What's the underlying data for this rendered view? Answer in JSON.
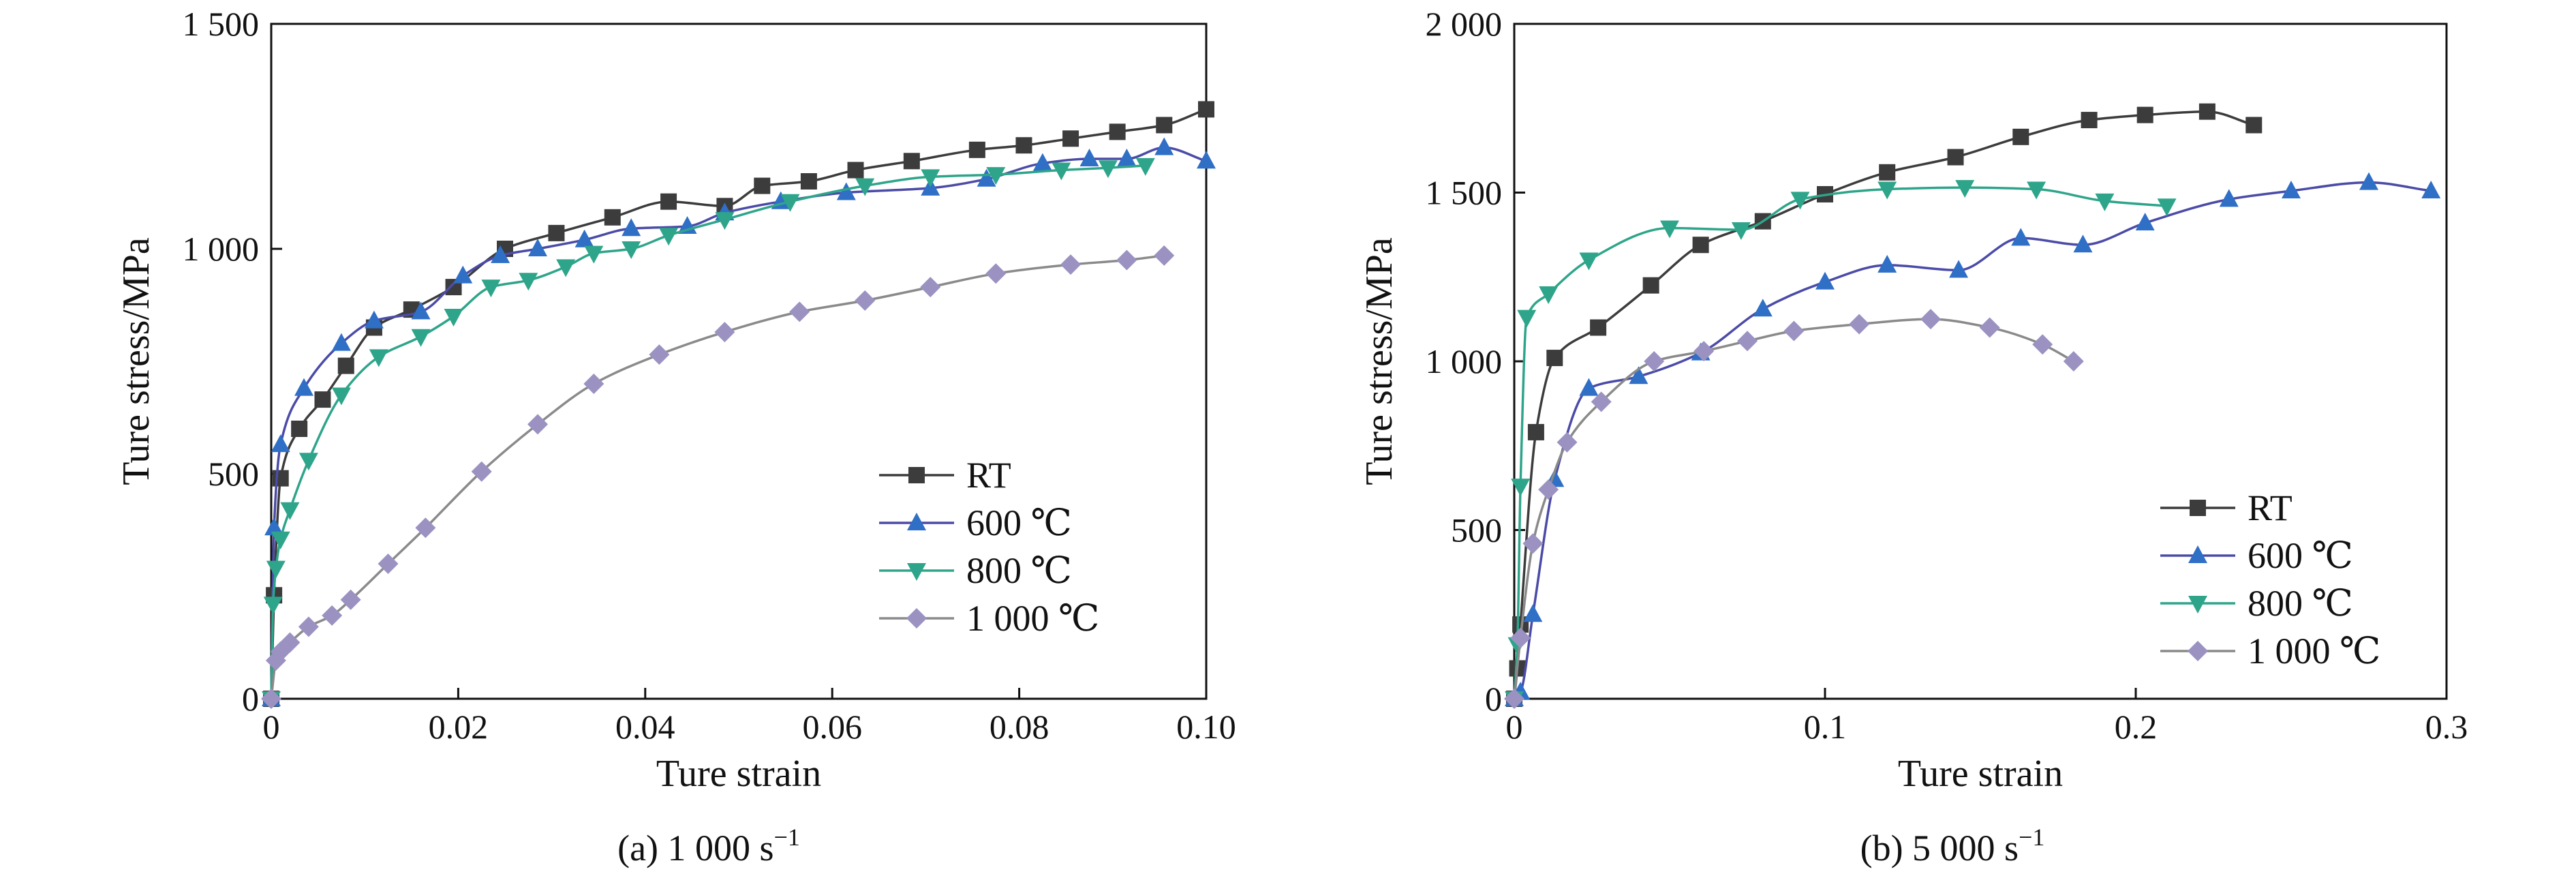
{
  "chart_data": [
    {
      "type": "line",
      "caption": "(a) 1 000 s",
      "caption_sup": "−1",
      "xlabel": "Ture strain",
      "ylabel": "Ture stress/MPa",
      "xlim": [
        0,
        0.1
      ],
      "ylim": [
        0,
        1500
      ],
      "xticks": [
        0,
        0.02,
        0.04,
        0.06,
        0.08,
        0.1
      ],
      "xtick_labels": [
        "0",
        "0.02",
        "0.04",
        "0.06",
        "0.08",
        "0.10"
      ],
      "yticks": [
        0,
        500,
        1000,
        1500
      ],
      "ytick_labels": [
        "0",
        "500",
        "1 000",
        "1 500"
      ],
      "legend": "bottom-right",
      "grid": false,
      "series": [
        {
          "name": "RT",
          "color": "#3c3c3c",
          "marker": "square",
          "x": [
            0,
            0.0003,
            0.001,
            0.003,
            0.0055,
            0.008,
            0.011,
            0.015,
            0.0195,
            0.025,
            0.0305,
            0.0365,
            0.0425,
            0.0485,
            0.0525,
            0.0575,
            0.0625,
            0.0685,
            0.0755,
            0.0805,
            0.0855,
            0.0905,
            0.0955,
            0.1
          ],
          "y": [
            0,
            230,
            490,
            600,
            665,
            740,
            825,
            865,
            915,
            1000,
            1035,
            1070,
            1105,
            1095,
            1140,
            1150,
            1175,
            1195,
            1220,
            1230,
            1245,
            1260,
            1275,
            1310
          ]
        },
        {
          "name": "600 ℃",
          "color": "#2f6fc6",
          "line_color": "#4b4ba8",
          "marker": "triangle-up",
          "x": [
            0,
            0.0003,
            0.001,
            0.0035,
            0.0075,
            0.011,
            0.016,
            0.0205,
            0.0245,
            0.0285,
            0.0335,
            0.0385,
            0.0445,
            0.0485,
            0.0545,
            0.0615,
            0.0705,
            0.0765,
            0.0825,
            0.0875,
            0.0915,
            0.0955,
            0.1
          ],
          "y": [
            0,
            380,
            565,
            690,
            790,
            840,
            860,
            940,
            985,
            1000,
            1020,
            1045,
            1050,
            1080,
            1105,
            1125,
            1135,
            1155,
            1190,
            1200,
            1200,
            1225,
            1195
          ]
        },
        {
          "name": "800 ℃",
          "color": "#2ea58a",
          "marker": "triangle-down",
          "x": [
            0,
            0.0002,
            0.0005,
            0.001,
            0.002,
            0.004,
            0.0075,
            0.0115,
            0.016,
            0.0195,
            0.0235,
            0.0275,
            0.0315,
            0.0345,
            0.0385,
            0.0425,
            0.0485,
            0.0555,
            0.0635,
            0.0705,
            0.0775,
            0.0845,
            0.0895,
            0.0935
          ],
          "y": [
            0,
            210,
            290,
            355,
            420,
            530,
            675,
            760,
            805,
            850,
            915,
            930,
            960,
            990,
            1000,
            1030,
            1065,
            1105,
            1140,
            1160,
            1165,
            1175,
            1180,
            1185
          ]
        },
        {
          "name": "1 000 ℃",
          "color": "#9b92c2",
          "line_color": "#8a8a8a",
          "marker": "diamond",
          "x": [
            0,
            0.0005,
            0.001,
            0.002,
            0.004,
            0.0065,
            0.0085,
            0.0125,
            0.0165,
            0.0225,
            0.0285,
            0.0345,
            0.0415,
            0.0485,
            0.0565,
            0.0635,
            0.0705,
            0.0775,
            0.0855,
            0.0915,
            0.0955
          ],
          "y": [
            0,
            85,
            105,
            125,
            160,
            185,
            220,
            300,
            380,
            505,
            610,
            700,
            765,
            815,
            860,
            885,
            915,
            945,
            965,
            975,
            985
          ]
        }
      ]
    },
    {
      "type": "line",
      "caption": "(b) 5 000 s",
      "caption_sup": "−1",
      "xlabel": "Ture strain",
      "ylabel": "Ture stress/MPa",
      "xlim": [
        0,
        0.3
      ],
      "ylim": [
        0,
        2000
      ],
      "xticks": [
        0,
        0.1,
        0.2,
        0.3
      ],
      "xtick_labels": [
        "0",
        "0.1",
        "0.2",
        "0.3"
      ],
      "yticks": [
        0,
        500,
        1000,
        1500,
        2000
      ],
      "ytick_labels": [
        "0",
        "500",
        "1 000",
        "1 500",
        "2 000"
      ],
      "legend": "bottom-right",
      "grid": false,
      "series": [
        {
          "name": "RT",
          "color": "#3c3c3c",
          "marker": "square",
          "x": [
            0,
            0.001,
            0.002,
            0.007,
            0.013,
            0.027,
            0.044,
            0.06,
            0.08,
            0.1,
            0.12,
            0.142,
            0.163,
            0.185,
            0.203,
            0.223,
            0.238
          ],
          "y": [
            0,
            90,
            220,
            790,
            1010,
            1100,
            1225,
            1345,
            1415,
            1495,
            1560,
            1605,
            1665,
            1715,
            1730,
            1740,
            1700
          ]
        },
        {
          "name": "600 ℃",
          "color": "#2f6fc6",
          "line_color": "#4b4ba8",
          "marker": "triangle-up",
          "x": [
            0,
            0.002,
            0.006,
            0.013,
            0.024,
            0.04,
            0.06,
            0.08,
            0.1,
            0.12,
            0.143,
            0.163,
            0.183,
            0.203,
            0.23,
            0.25,
            0.275,
            0.295
          ],
          "y": [
            0,
            20,
            250,
            650,
            920,
            955,
            1025,
            1155,
            1235,
            1285,
            1270,
            1365,
            1345,
            1410,
            1480,
            1505,
            1530,
            1505
          ]
        },
        {
          "name": "800 ℃",
          "color": "#2ea58a",
          "marker": "triangle-down",
          "x": [
            0,
            0.001,
            0.002,
            0.004,
            0.011,
            0.024,
            0.05,
            0.073,
            0.092,
            0.12,
            0.145,
            0.168,
            0.19,
            0.21
          ],
          "y": [
            0,
            160,
            630,
            1130,
            1200,
            1300,
            1395,
            1390,
            1480,
            1510,
            1515,
            1510,
            1475,
            1460
          ]
        },
        {
          "name": "1 000 ℃",
          "color": "#9b92c2",
          "line_color": "#8a8a8a",
          "marker": "diamond",
          "x": [
            0,
            0.002,
            0.006,
            0.011,
            0.017,
            0.028,
            0.045,
            0.061,
            0.075,
            0.09,
            0.111,
            0.134,
            0.153,
            0.17,
            0.18
          ],
          "y": [
            0,
            180,
            460,
            620,
            760,
            880,
            1000,
            1030,
            1060,
            1090,
            1110,
            1125,
            1100,
            1050,
            1000
          ]
        }
      ]
    }
  ]
}
